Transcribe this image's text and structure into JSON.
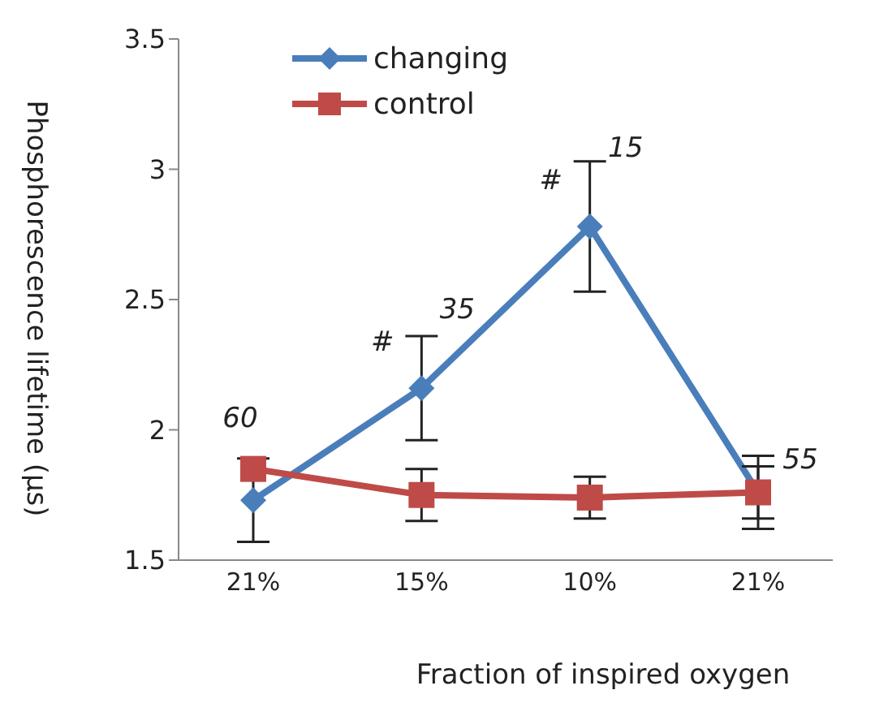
{
  "chart_data": {
    "type": "line",
    "xlabel": "Fraction of inspired oxygen",
    "ylabel": "Phosphorescence lifetime (μs)",
    "categories": [
      "21%",
      "15%",
      "10%",
      "21%"
    ],
    "series": [
      {
        "name": "changing",
        "color": "#4a7ebb",
        "marker": "diamond",
        "values": [
          1.73,
          2.16,
          2.78,
          1.76
        ],
        "errors": [
          0.16,
          0.2,
          0.25,
          0.14
        ]
      },
      {
        "name": "control",
        "color": "#be4b48",
        "marker": "square",
        "values": [
          1.85,
          1.75,
          1.74,
          1.76
        ],
        "errors": [
          null,
          0.1,
          0.08,
          0.1
        ]
      }
    ],
    "ylim": [
      1.5,
      3.5
    ],
    "yticks": [
      1.5,
      2,
      2.5,
      3,
      3.5
    ],
    "grid": false,
    "legend": "top left",
    "annotations": [
      {
        "text": "60",
        "x": "21%",
        "y": 1.73
      },
      {
        "text": "#",
        "x": "15%",
        "y": 2.16
      },
      {
        "text": "35",
        "x": "15%",
        "y": 2.16
      },
      {
        "text": "#",
        "x": "10%",
        "y": 2.78
      },
      {
        "text": "15",
        "x": "10%",
        "y": 2.78
      },
      "55"
    ]
  }
}
